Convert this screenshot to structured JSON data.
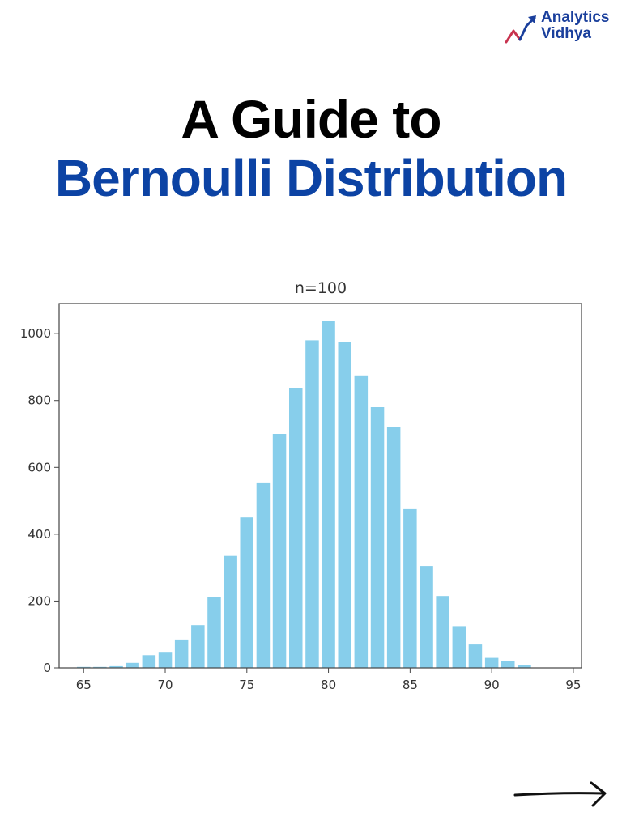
{
  "brand": {
    "line1": "Analytics",
    "line2": "Vidhya"
  },
  "heading": {
    "line1": "A Guide to",
    "line2": "Bernoulli Distribution"
  },
  "colors": {
    "title_black": "#000000",
    "title_blue": "#0c43a4",
    "brand_blue": "#1a3f9c",
    "bar": "#87ceeb"
  },
  "icons": {
    "logo": "trend-arrow-icon",
    "next": "arrow-right-icon"
  },
  "chart_data": {
    "type": "bar",
    "title": "n=100",
    "xlabel": "",
    "ylabel": "",
    "xlim": [
      63.5,
      95.5
    ],
    "ylim": [
      0,
      1090
    ],
    "xticks": [
      65,
      70,
      75,
      80,
      85,
      90,
      95
    ],
    "yticks": [
      0,
      200,
      400,
      600,
      800,
      1000
    ],
    "grid": false,
    "x": [
      65,
      66,
      67,
      68,
      69,
      70,
      71,
      72,
      73,
      74,
      75,
      76,
      77,
      78,
      79,
      80,
      81,
      82,
      83,
      84,
      85,
      86,
      87,
      88,
      89,
      90,
      91,
      92
    ],
    "values": [
      3,
      3,
      5,
      15,
      38,
      48,
      85,
      128,
      212,
      335,
      450,
      555,
      700,
      838,
      980,
      1038,
      975,
      875,
      780,
      720,
      475,
      305,
      215,
      125,
      70,
      30,
      20,
      8
    ]
  }
}
